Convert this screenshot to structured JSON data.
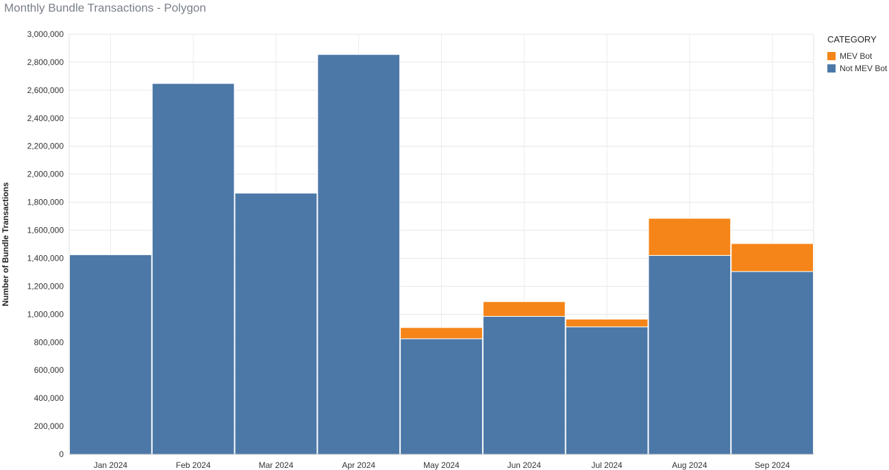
{
  "chart_data": {
    "type": "bar",
    "stacked": true,
    "title": "Monthly Bundle Transactions - Polygon",
    "xlabel": "",
    "ylabel": "Number of Bundle Transactions",
    "ylim": [
      0,
      3000000
    ],
    "yticks": [
      0,
      200000,
      400000,
      600000,
      800000,
      1000000,
      1200000,
      1400000,
      1600000,
      1800000,
      2000000,
      2200000,
      2400000,
      2600000,
      2800000,
      3000000
    ],
    "ytick_labels": [
      "0",
      "200,000",
      "400,000",
      "600,000",
      "800,000",
      "1,000,000",
      "1,200,000",
      "1,400,000",
      "1,600,000",
      "1,800,000",
      "2,000,000",
      "2,200,000",
      "2,400,000",
      "2,600,000",
      "2,800,000",
      "3,000,000"
    ],
    "categories": [
      "Jan 2024",
      "Feb 2024",
      "Mar 2024",
      "Apr 2024",
      "May 2024",
      "Jun 2024",
      "Jul 2024",
      "Aug 2024",
      "Sep 2024"
    ],
    "series": [
      {
        "name": "Not MEV Bot",
        "color": "#4c78a8",
        "values": [
          1425000,
          2648000,
          1865000,
          2855000,
          825000,
          985000,
          910000,
          1420000,
          1305000
        ]
      },
      {
        "name": "MEV Bot",
        "color": "#f58518",
        "values": [
          0,
          0,
          0,
          0,
          80000,
          105000,
          55000,
          265000,
          200000
        ]
      }
    ],
    "grid": true,
    "legend_title": "CATEGORY",
    "legend_position": "right",
    "legend_order": [
      "MEV Bot",
      "Not MEV Bot"
    ]
  }
}
